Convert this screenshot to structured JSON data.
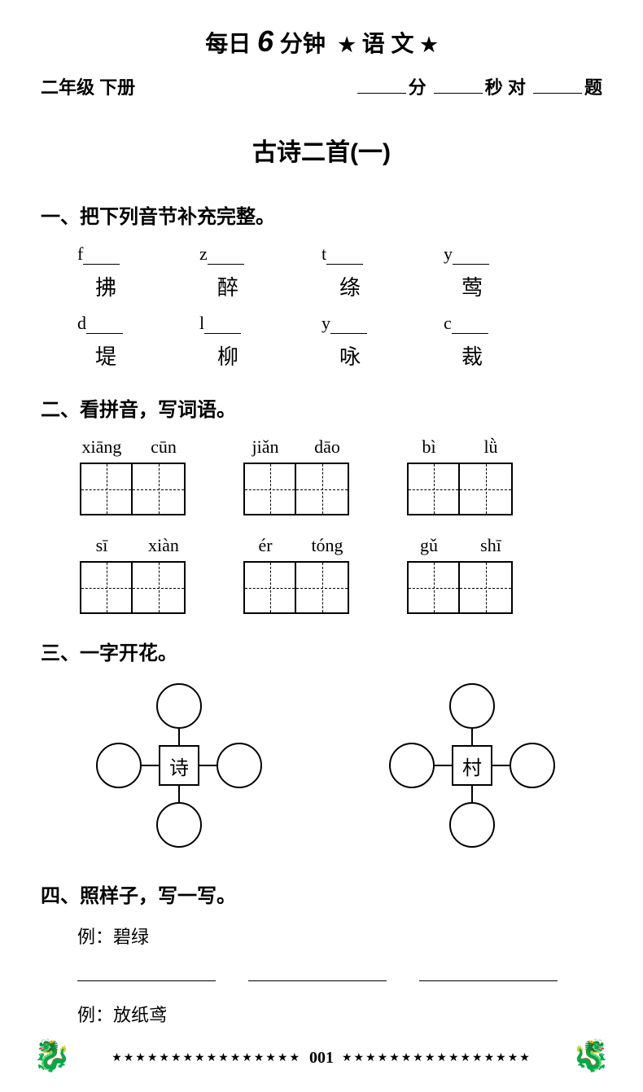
{
  "header": {
    "pre": "每日",
    "num": "6",
    "post": "分钟",
    "star": "★",
    "subject": "语 文"
  },
  "subtitle": {
    "left": "二年级 下册",
    "unit_min": "分",
    "unit_sec": "秒 对",
    "unit_q": "题"
  },
  "lesson": "古诗二首(一)",
  "sec1": {
    "head": "一、把下列音节补充完整。",
    "row1_letters": [
      "f",
      "z",
      "t",
      "y"
    ],
    "row1_chars": [
      "拂",
      "醉",
      "绦",
      "莺"
    ],
    "row2_letters": [
      "d",
      "l",
      "y",
      "c"
    ],
    "row2_chars": [
      "堤",
      "柳",
      "咏",
      "裁"
    ]
  },
  "sec2": {
    "head": "二、看拼音，写词语。",
    "row1": [
      {
        "p1": "xiāng",
        "p2": "cūn"
      },
      {
        "p1": "jiǎn",
        "p2": "dāo"
      },
      {
        "p1": "bì",
        "p2": "lǜ"
      }
    ],
    "row2": [
      {
        "p1": "sī",
        "p2": "xiàn"
      },
      {
        "p1": "ér",
        "p2": "tóng"
      },
      {
        "p1": "gǔ",
        "p2": "shī"
      }
    ]
  },
  "sec3": {
    "head": "三、一字开花。",
    "center1": "诗",
    "center2": "村"
  },
  "sec4": {
    "head": "四、照样子，写一写。",
    "ex1": "例：碧绿",
    "ex2": "例：放纸鸢"
  },
  "footer": {
    "stars": "★★★★★★★★★★★★★★★★",
    "page": "001",
    "deco": "🐉"
  }
}
